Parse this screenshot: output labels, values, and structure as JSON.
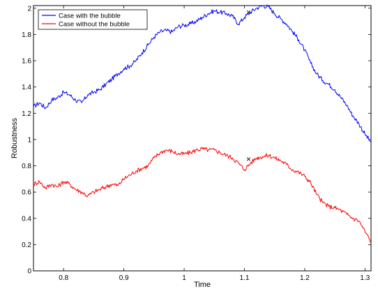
{
  "chart_data": {
    "type": "line",
    "xlabel": "Time",
    "ylabel": "Robustness",
    "xlim": [
      0.75,
      1.31
    ],
    "ylim": [
      0,
      2.02
    ],
    "xticks": [
      "0.8",
      "0.9",
      "1",
      "1.1",
      "1.2",
      "1.3"
    ],
    "yticks": [
      "0",
      "0.2",
      "0.4",
      "0.6",
      "0.8",
      "1",
      "1.2",
      "1.4",
      "1.6",
      "1.8",
      "2"
    ],
    "grid": false,
    "legend_position": "top-left",
    "series": [
      {
        "name": "Case with the bubble",
        "color": "#0000ff",
        "x": [
          0.75,
          0.76,
          0.77,
          0.78,
          0.79,
          0.8,
          0.81,
          0.82,
          0.83,
          0.84,
          0.85,
          0.86,
          0.87,
          0.88,
          0.89,
          0.9,
          0.91,
          0.92,
          0.93,
          0.94,
          0.95,
          0.96,
          0.97,
          0.98,
          0.99,
          1.0,
          1.01,
          1.02,
          1.03,
          1.04,
          1.05,
          1.06,
          1.07,
          1.08,
          1.09,
          1.1,
          1.11,
          1.12,
          1.13,
          1.14,
          1.15,
          1.16,
          1.17,
          1.18,
          1.19,
          1.2,
          1.21,
          1.22,
          1.23,
          1.24,
          1.25,
          1.26,
          1.27,
          1.28,
          1.29,
          1.3,
          1.31
        ],
        "y": [
          1.25,
          1.28,
          1.24,
          1.3,
          1.32,
          1.36,
          1.34,
          1.3,
          1.28,
          1.34,
          1.36,
          1.38,
          1.42,
          1.46,
          1.5,
          1.54,
          1.56,
          1.6,
          1.66,
          1.72,
          1.78,
          1.82,
          1.83,
          1.82,
          1.86,
          1.87,
          1.88,
          1.9,
          1.93,
          1.96,
          1.98,
          1.97,
          1.96,
          1.94,
          1.88,
          1.93,
          1.97,
          2.0,
          2.02,
          2.01,
          1.96,
          1.92,
          1.88,
          1.82,
          1.76,
          1.68,
          1.58,
          1.5,
          1.45,
          1.42,
          1.38,
          1.32,
          1.26,
          1.18,
          1.12,
          1.04,
          0.98
        ]
      },
      {
        "name": "Case without the bubble",
        "color": "#ff0000",
        "x": [
          0.75,
          0.76,
          0.77,
          0.78,
          0.79,
          0.8,
          0.81,
          0.82,
          0.83,
          0.84,
          0.85,
          0.86,
          0.87,
          0.88,
          0.89,
          0.9,
          0.91,
          0.92,
          0.93,
          0.94,
          0.95,
          0.96,
          0.97,
          0.98,
          0.99,
          1.0,
          1.01,
          1.02,
          1.03,
          1.04,
          1.05,
          1.06,
          1.07,
          1.08,
          1.09,
          1.1,
          1.11,
          1.12,
          1.13,
          1.14,
          1.15,
          1.16,
          1.17,
          1.18,
          1.19,
          1.2,
          1.21,
          1.22,
          1.23,
          1.24,
          1.25,
          1.26,
          1.27,
          1.28,
          1.29,
          1.3,
          1.31
        ],
        "y": [
          0.66,
          0.68,
          0.63,
          0.66,
          0.64,
          0.68,
          0.66,
          0.62,
          0.6,
          0.57,
          0.6,
          0.62,
          0.64,
          0.66,
          0.65,
          0.7,
          0.73,
          0.76,
          0.78,
          0.8,
          0.86,
          0.9,
          0.92,
          0.91,
          0.89,
          0.89,
          0.9,
          0.92,
          0.93,
          0.92,
          0.92,
          0.9,
          0.88,
          0.86,
          0.82,
          0.77,
          0.82,
          0.86,
          0.87,
          0.88,
          0.86,
          0.84,
          0.81,
          0.77,
          0.75,
          0.72,
          0.67,
          0.58,
          0.52,
          0.49,
          0.48,
          0.46,
          0.43,
          0.4,
          0.38,
          0.3,
          0.22
        ]
      }
    ],
    "markers": [
      {
        "symbol": "×",
        "x": 1.107,
        "y": 1.97
      },
      {
        "symbol": "×",
        "x": 1.107,
        "y": 0.85
      }
    ]
  }
}
